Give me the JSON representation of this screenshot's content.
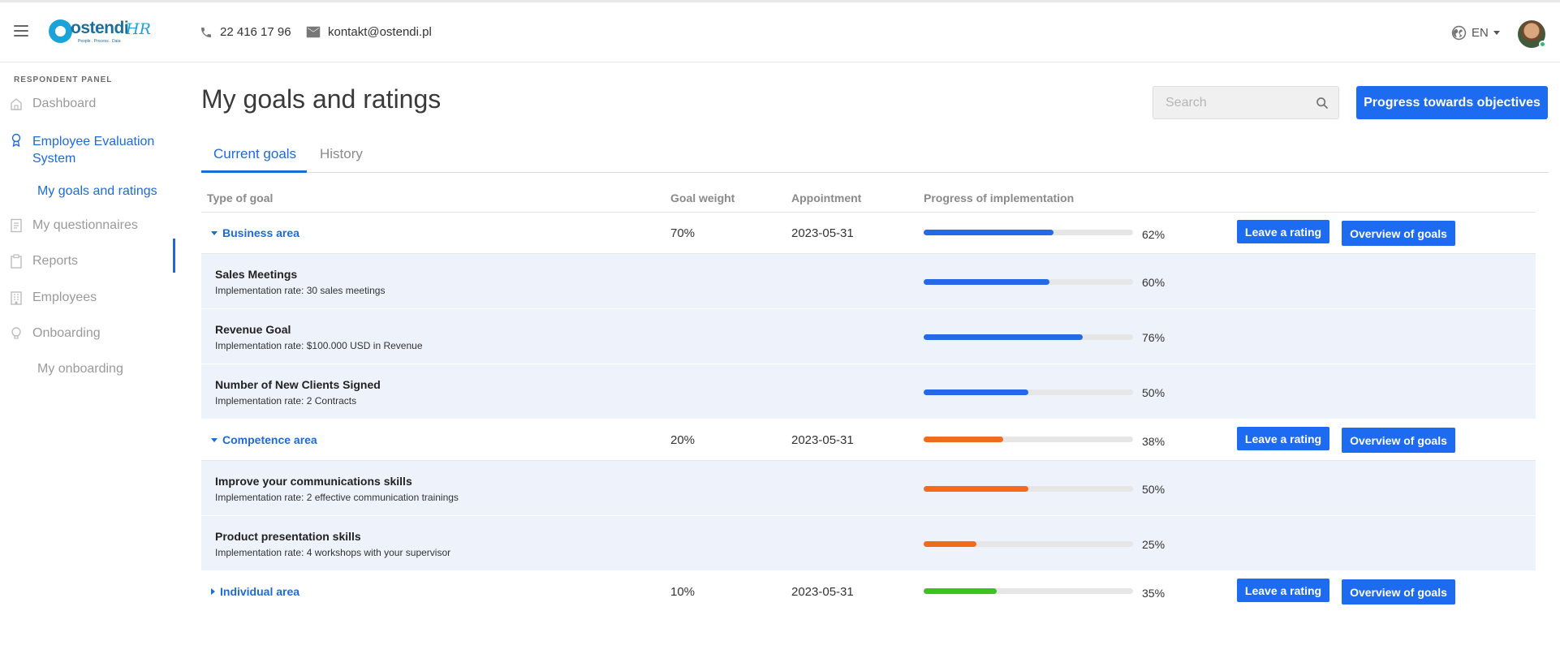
{
  "header": {
    "logo_text": "ostendi",
    "logo_hr": "HR",
    "logo_tagline": "People . Process . Data",
    "phone": "22 416 17 96",
    "email": "kontakt@ostendi.pl",
    "language": "EN"
  },
  "sidebar": {
    "heading": "RESPONDENT PANEL",
    "items": [
      {
        "label": "Dashboard",
        "icon": "home-icon"
      },
      {
        "label": "Employee Evaluation System",
        "icon": "award-icon"
      },
      {
        "label": "My goals and ratings"
      },
      {
        "label": "My questionnaires",
        "icon": "questionnaire-icon"
      },
      {
        "label": "Reports",
        "icon": "clipboard-icon"
      },
      {
        "label": "Employees",
        "icon": "building-icon"
      },
      {
        "label": "Onboarding",
        "icon": "lightbulb-icon"
      },
      {
        "label": "My onboarding"
      }
    ]
  },
  "main": {
    "title": "My goals and ratings",
    "search_placeholder": "Search",
    "progress_button": "Progress towards objectives",
    "tabs": [
      {
        "label": "Current goals",
        "active": true
      },
      {
        "label": "History",
        "active": false
      }
    ],
    "table": {
      "columns": [
        "Type of goal",
        "Goal weight",
        "Appointment",
        "Progress of implementation"
      ],
      "rate_label": "Leave a rating",
      "overview_label": "Overview of goals",
      "groups": [
        {
          "name": "Business area",
          "expanded": true,
          "weight": "70%",
          "date": "2023-05-31",
          "progress": 62,
          "progress_label": "62%",
          "color": "#2369ea",
          "goals": [
            {
              "title": "Sales Meetings",
              "desc": "Implementation rate: 30 sales meetings",
              "progress": 60,
              "progress_label": "60%"
            },
            {
              "title": "Revenue Goal",
              "desc": "Implementation rate: $100.000 USD in Revenue",
              "progress": 76,
              "progress_label": "76%"
            },
            {
              "title": "Number of New Clients Signed",
              "desc": "Implementation rate: 2 Contracts",
              "progress": 50,
              "progress_label": "50%"
            }
          ]
        },
        {
          "name": "Competence area",
          "expanded": true,
          "weight": "20%",
          "date": "2023-05-31",
          "progress": 38,
          "progress_label": "38%",
          "color": "#f26b1d",
          "goals": [
            {
              "title": "Improve your communications skills",
              "desc": "Implementation rate: 2 effective communication trainings",
              "progress": 50,
              "progress_label": "50%"
            },
            {
              "title": "Product presentation skills",
              "desc": "Implementation rate: 4 workshops with your supervisor",
              "progress": 25,
              "progress_label": "25%"
            }
          ]
        },
        {
          "name": "Individual area",
          "expanded": false,
          "weight": "10%",
          "date": "2023-05-31",
          "progress": 35,
          "progress_label": "35%",
          "color": "#3cc31e",
          "goals": []
        }
      ]
    }
  }
}
